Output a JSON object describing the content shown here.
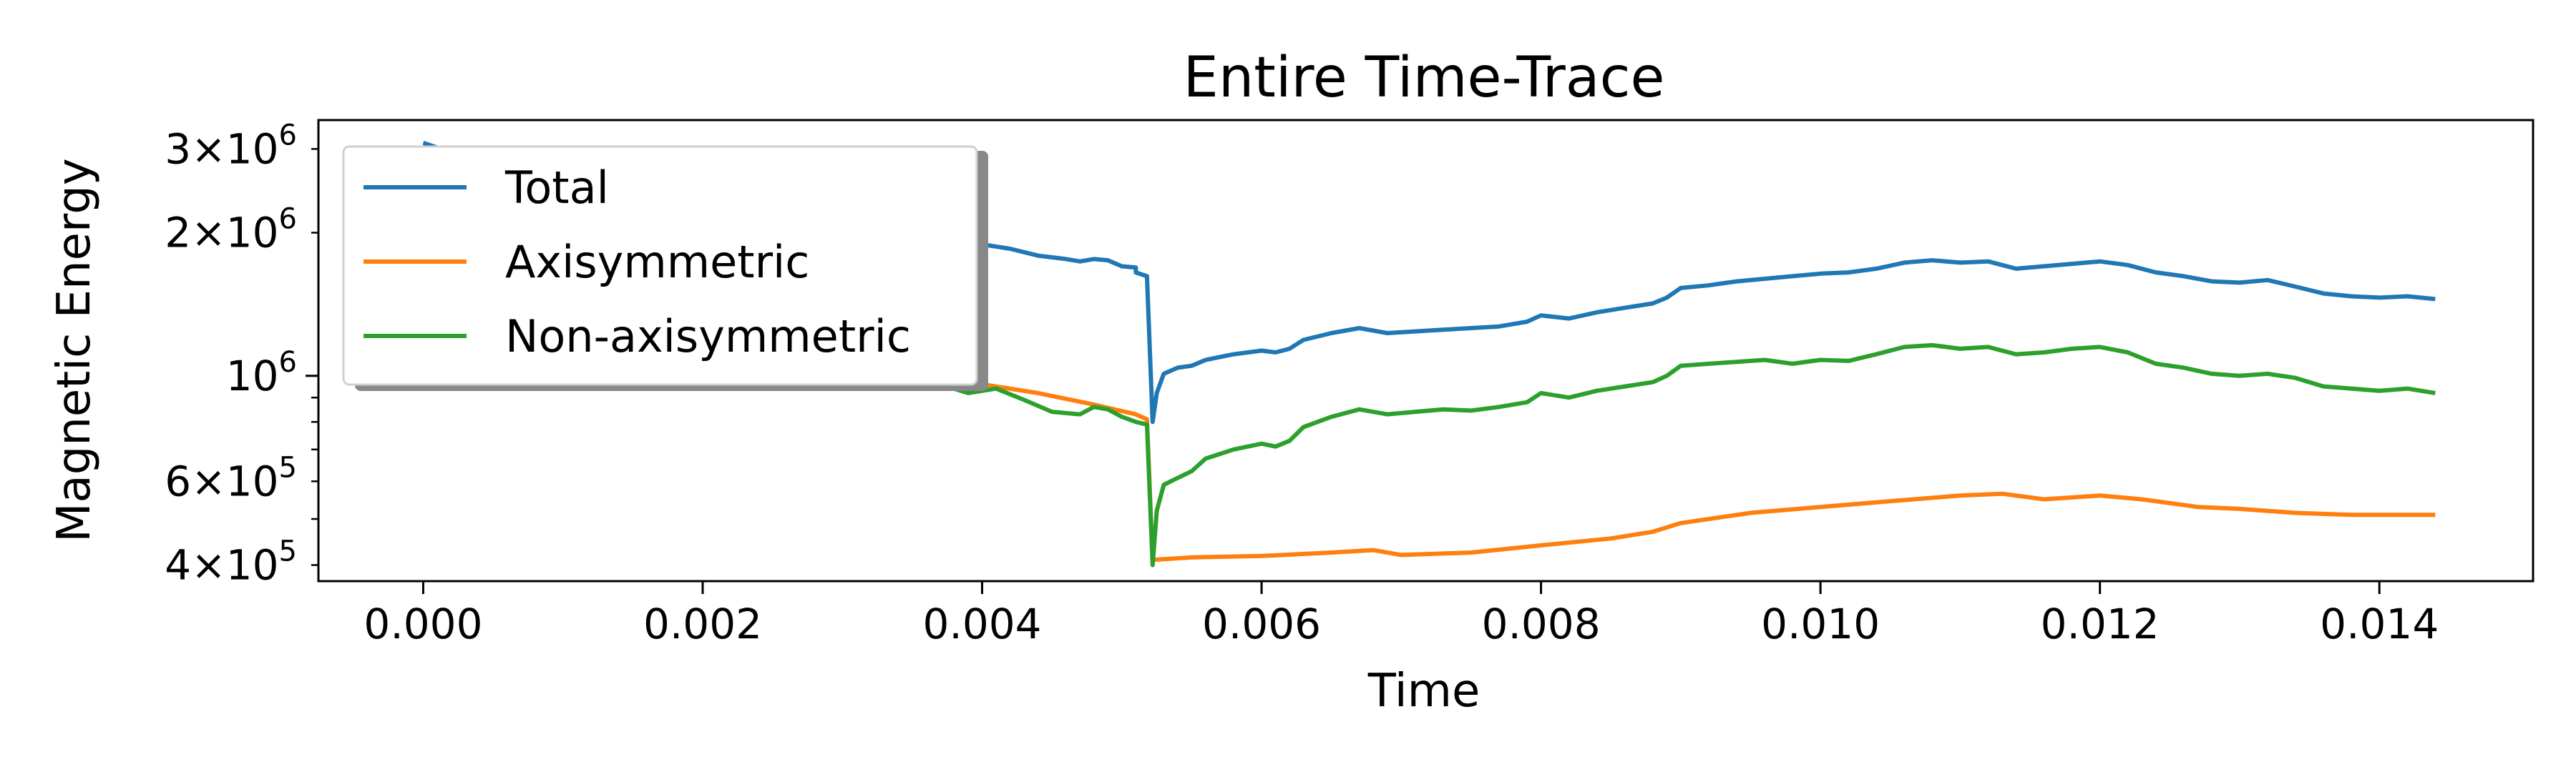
{
  "chart_data": {
    "type": "line",
    "title": "Entire Time-Trace",
    "xlabel": "Time",
    "ylabel": "Magnetic Energy",
    "xscale": "linear",
    "yscale": "log",
    "xlim": [
      -0.00075,
      0.0151
    ],
    "ylim": [
      370000,
      3450000
    ],
    "x_ticks": [
      0.0,
      0.002,
      0.004,
      0.006,
      0.008,
      0.01,
      0.012,
      0.014
    ],
    "x_tick_labels": [
      "0.000",
      "0.002",
      "0.004",
      "0.006",
      "0.008",
      "0.010",
      "0.012",
      "0.014"
    ],
    "y_ticks": [
      {
        "value": 400000,
        "mantissa": "4×10",
        "exponent": "5"
      },
      {
        "value": 600000,
        "mantissa": "6×10",
        "exponent": "5"
      },
      {
        "value": 1000000,
        "mantissa": "10",
        "exponent": "6"
      },
      {
        "value": 2000000,
        "mantissa": "2×10",
        "exponent": "6"
      },
      {
        "value": 3000000,
        "mantissa": "3×10",
        "exponent": "6"
      }
    ],
    "grid": false,
    "legend_position": "top-left",
    "series": [
      {
        "name": "Total",
        "color": "#1f77b4",
        "points": [
          [
            0.0,
            3090000
          ],
          [
            0.0002,
            2950000
          ],
          [
            0.0005,
            2800000
          ],
          [
            0.001,
            2600000
          ],
          [
            0.0015,
            2400000
          ],
          [
            0.002,
            2250000
          ],
          [
            0.0025,
            2100000
          ],
          [
            0.003,
            2000000
          ],
          [
            0.0035,
            1950000
          ],
          [
            0.004,
            1890000
          ],
          [
            0.0042,
            1850000
          ],
          [
            0.0044,
            1790000
          ],
          [
            0.0046,
            1760000
          ],
          [
            0.0047,
            1740000
          ],
          [
            0.0048,
            1760000
          ],
          [
            0.0049,
            1750000
          ],
          [
            0.005,
            1700000
          ],
          [
            0.0051,
            1690000
          ],
          [
            0.0051,
            1650000
          ],
          [
            0.00518,
            1620000
          ],
          [
            0.00522,
            800000
          ],
          [
            0.00525,
            920000
          ],
          [
            0.0053,
            1010000
          ],
          [
            0.0054,
            1040000
          ],
          [
            0.0055,
            1050000
          ],
          [
            0.0056,
            1080000
          ],
          [
            0.0058,
            1110000
          ],
          [
            0.006,
            1130000
          ],
          [
            0.0061,
            1120000
          ],
          [
            0.0062,
            1140000
          ],
          [
            0.0063,
            1190000
          ],
          [
            0.0065,
            1230000
          ],
          [
            0.0067,
            1260000
          ],
          [
            0.0069,
            1230000
          ],
          [
            0.0071,
            1240000
          ],
          [
            0.0073,
            1250000
          ],
          [
            0.0075,
            1260000
          ],
          [
            0.0077,
            1270000
          ],
          [
            0.0079,
            1300000
          ],
          [
            0.008,
            1340000
          ],
          [
            0.0082,
            1320000
          ],
          [
            0.0084,
            1360000
          ],
          [
            0.0086,
            1390000
          ],
          [
            0.0088,
            1420000
          ],
          [
            0.0089,
            1460000
          ],
          [
            0.009,
            1530000
          ],
          [
            0.0092,
            1550000
          ],
          [
            0.0094,
            1580000
          ],
          [
            0.0096,
            1600000
          ],
          [
            0.0098,
            1620000
          ],
          [
            0.01,
            1640000
          ],
          [
            0.0102,
            1650000
          ],
          [
            0.0104,
            1680000
          ],
          [
            0.0106,
            1730000
          ],
          [
            0.0108,
            1750000
          ],
          [
            0.011,
            1730000
          ],
          [
            0.0112,
            1740000
          ],
          [
            0.0114,
            1680000
          ],
          [
            0.0116,
            1700000
          ],
          [
            0.0118,
            1720000
          ],
          [
            0.012,
            1740000
          ],
          [
            0.0122,
            1710000
          ],
          [
            0.0124,
            1650000
          ],
          [
            0.0126,
            1620000
          ],
          [
            0.0128,
            1580000
          ],
          [
            0.013,
            1570000
          ],
          [
            0.0132,
            1590000
          ],
          [
            0.0134,
            1540000
          ],
          [
            0.0136,
            1490000
          ],
          [
            0.0138,
            1470000
          ],
          [
            0.014,
            1460000
          ],
          [
            0.0142,
            1470000
          ],
          [
            0.0144,
            1450000
          ]
        ]
      },
      {
        "name": "Axisymmetric",
        "color": "#ff7f0e",
        "points": [
          [
            0.0,
            1060000
          ],
          [
            0.001,
            1040000
          ],
          [
            0.002,
            1020000
          ],
          [
            0.003,
            1000000
          ],
          [
            0.0035,
            990000
          ],
          [
            0.004,
            960000
          ],
          [
            0.0044,
            920000
          ],
          [
            0.0048,
            870000
          ],
          [
            0.0051,
            830000
          ],
          [
            0.00518,
            810000
          ],
          [
            0.00522,
            410000
          ],
          [
            0.0055,
            415000
          ],
          [
            0.006,
            418000
          ],
          [
            0.0065,
            425000
          ],
          [
            0.0068,
            430000
          ],
          [
            0.007,
            420000
          ],
          [
            0.0075,
            425000
          ],
          [
            0.008,
            440000
          ],
          [
            0.0085,
            455000
          ],
          [
            0.0088,
            470000
          ],
          [
            0.009,
            490000
          ],
          [
            0.0095,
            515000
          ],
          [
            0.01,
            530000
          ],
          [
            0.0105,
            545000
          ],
          [
            0.011,
            560000
          ],
          [
            0.0113,
            565000
          ],
          [
            0.0116,
            550000
          ],
          [
            0.012,
            560000
          ],
          [
            0.0123,
            550000
          ],
          [
            0.0127,
            530000
          ],
          [
            0.013,
            525000
          ],
          [
            0.0134,
            515000
          ],
          [
            0.0138,
            510000
          ],
          [
            0.0144,
            510000
          ]
        ]
      },
      {
        "name": "Non-axisymmetric",
        "color": "#2ca02c",
        "points": [
          [
            0.0,
            1000000
          ],
          [
            0.001,
            990000
          ],
          [
            0.002,
            980000
          ],
          [
            0.003,
            970000
          ],
          [
            0.0033,
            975000
          ],
          [
            0.0035,
            940000
          ],
          [
            0.0037,
            960000
          ],
          [
            0.0039,
            920000
          ],
          [
            0.0041,
            940000
          ],
          [
            0.0043,
            890000
          ],
          [
            0.0045,
            840000
          ],
          [
            0.0047,
            830000
          ],
          [
            0.0048,
            860000
          ],
          [
            0.0049,
            850000
          ],
          [
            0.005,
            820000
          ],
          [
            0.0051,
            800000
          ],
          [
            0.00518,
            790000
          ],
          [
            0.00522,
            400000
          ],
          [
            0.00525,
            520000
          ],
          [
            0.0053,
            590000
          ],
          [
            0.0054,
            610000
          ],
          [
            0.0055,
            630000
          ],
          [
            0.0056,
            670000
          ],
          [
            0.0058,
            700000
          ],
          [
            0.006,
            720000
          ],
          [
            0.0061,
            710000
          ],
          [
            0.0062,
            730000
          ],
          [
            0.0063,
            780000
          ],
          [
            0.0065,
            820000
          ],
          [
            0.0067,
            850000
          ],
          [
            0.0069,
            830000
          ],
          [
            0.0071,
            840000
          ],
          [
            0.0073,
            850000
          ],
          [
            0.0075,
            845000
          ],
          [
            0.0077,
            860000
          ],
          [
            0.0079,
            880000
          ],
          [
            0.008,
            920000
          ],
          [
            0.0082,
            900000
          ],
          [
            0.0084,
            930000
          ],
          [
            0.0086,
            950000
          ],
          [
            0.0088,
            970000
          ],
          [
            0.0089,
            1000000
          ],
          [
            0.009,
            1050000
          ],
          [
            0.0092,
            1060000
          ],
          [
            0.0094,
            1070000
          ],
          [
            0.0096,
            1080000
          ],
          [
            0.0098,
            1060000
          ],
          [
            0.01,
            1080000
          ],
          [
            0.0102,
            1075000
          ],
          [
            0.0104,
            1110000
          ],
          [
            0.0106,
            1150000
          ],
          [
            0.0108,
            1160000
          ],
          [
            0.011,
            1140000
          ],
          [
            0.0112,
            1150000
          ],
          [
            0.0114,
            1110000
          ],
          [
            0.0116,
            1120000
          ],
          [
            0.0118,
            1140000
          ],
          [
            0.012,
            1150000
          ],
          [
            0.0122,
            1120000
          ],
          [
            0.0124,
            1060000
          ],
          [
            0.0126,
            1040000
          ],
          [
            0.0128,
            1010000
          ],
          [
            0.013,
            1000000
          ],
          [
            0.0132,
            1010000
          ],
          [
            0.0134,
            990000
          ],
          [
            0.0136,
            950000
          ],
          [
            0.0138,
            940000
          ],
          [
            0.014,
            930000
          ],
          [
            0.0142,
            940000
          ],
          [
            0.0144,
            920000
          ]
        ]
      }
    ]
  }
}
